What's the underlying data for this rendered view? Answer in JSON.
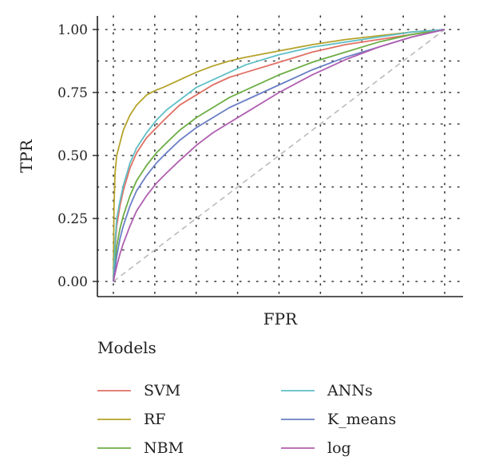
{
  "chart_data": {
    "type": "line",
    "title": "",
    "xlabel": "FPR",
    "ylabel": "TPR",
    "xlim": [
      0,
      1
    ],
    "ylim": [
      0,
      1
    ],
    "yticks": [
      "0.00",
      "0.25",
      "0.50",
      "0.75",
      "1.00"
    ],
    "grid": "dotted",
    "reference_line": {
      "x": [
        0,
        1
      ],
      "y": [
        0,
        1
      ],
      "color": "#bbbbbb",
      "style": "dashed"
    },
    "legend": {
      "title": "Models",
      "placement": "bottom",
      "columns": [
        [
          "SVM",
          "RF",
          "NBM"
        ],
        [
          "ANNs",
          "K_means",
          "log"
        ]
      ]
    },
    "series": [
      {
        "name": "SVM",
        "color": "#e07064",
        "x": [
          0,
          0.005,
          0.01,
          0.02,
          0.03,
          0.05,
          0.07,
          0.1,
          0.13,
          0.16,
          0.2,
          0.25,
          0.3,
          0.35,
          0.4,
          0.5,
          0.6,
          0.7,
          0.8,
          0.9,
          1.0
        ],
        "y": [
          0,
          0.13,
          0.22,
          0.3,
          0.36,
          0.45,
          0.51,
          0.57,
          0.61,
          0.65,
          0.7,
          0.74,
          0.78,
          0.81,
          0.83,
          0.87,
          0.91,
          0.94,
          0.96,
          0.98,
          1.0
        ]
      },
      {
        "name": "RF",
        "color": "#b5a329",
        "x": [
          0,
          0.002,
          0.005,
          0.01,
          0.02,
          0.03,
          0.05,
          0.07,
          0.1,
          0.13,
          0.15,
          0.2,
          0.25,
          0.3,
          0.35,
          0.4,
          0.5,
          0.6,
          0.7,
          0.8,
          0.9,
          1.0
        ],
        "y": [
          0,
          0.3,
          0.43,
          0.5,
          0.55,
          0.6,
          0.66,
          0.7,
          0.74,
          0.76,
          0.77,
          0.8,
          0.83,
          0.855,
          0.875,
          0.89,
          0.915,
          0.94,
          0.96,
          0.975,
          0.99,
          1.0
        ]
      },
      {
        "name": "NBM",
        "color": "#6dae44",
        "x": [
          0,
          0.005,
          0.01,
          0.02,
          0.03,
          0.05,
          0.07,
          0.1,
          0.13,
          0.16,
          0.2,
          0.25,
          0.3,
          0.35,
          0.4,
          0.5,
          0.6,
          0.7,
          0.8,
          0.9,
          1.0
        ],
        "y": [
          0,
          0.08,
          0.14,
          0.21,
          0.26,
          0.34,
          0.4,
          0.46,
          0.51,
          0.55,
          0.6,
          0.65,
          0.69,
          0.73,
          0.76,
          0.82,
          0.87,
          0.91,
          0.95,
          0.98,
          1.0
        ]
      },
      {
        "name": "ANNs",
        "color": "#5fbfc6",
        "x": [
          0,
          0.005,
          0.01,
          0.02,
          0.03,
          0.05,
          0.07,
          0.1,
          0.13,
          0.16,
          0.2,
          0.25,
          0.3,
          0.35,
          0.4,
          0.5,
          0.6,
          0.7,
          0.8,
          0.9,
          1.0
        ],
        "y": [
          0,
          0.15,
          0.25,
          0.32,
          0.38,
          0.47,
          0.53,
          0.59,
          0.64,
          0.68,
          0.72,
          0.77,
          0.8,
          0.83,
          0.86,
          0.9,
          0.93,
          0.95,
          0.97,
          0.99,
          1.0
        ]
      },
      {
        "name": "K_means",
        "color": "#6a7fc5",
        "x": [
          0,
          0.005,
          0.01,
          0.02,
          0.03,
          0.05,
          0.07,
          0.1,
          0.13,
          0.16,
          0.2,
          0.25,
          0.3,
          0.35,
          0.4,
          0.5,
          0.6,
          0.7,
          0.8,
          0.9,
          1.0
        ],
        "y": [
          0,
          0.05,
          0.1,
          0.17,
          0.22,
          0.3,
          0.36,
          0.42,
          0.47,
          0.51,
          0.56,
          0.61,
          0.65,
          0.69,
          0.72,
          0.78,
          0.84,
          0.89,
          0.93,
          0.97,
          1.0
        ]
      },
      {
        "name": "log",
        "color": "#b05fb0",
        "x": [
          0,
          0.005,
          0.01,
          0.02,
          0.03,
          0.05,
          0.07,
          0.1,
          0.13,
          0.16,
          0.2,
          0.25,
          0.3,
          0.35,
          0.4,
          0.5,
          0.6,
          0.7,
          0.8,
          0.9,
          1.0
        ],
        "y": [
          0,
          0.03,
          0.06,
          0.11,
          0.15,
          0.22,
          0.28,
          0.34,
          0.39,
          0.43,
          0.48,
          0.54,
          0.59,
          0.63,
          0.67,
          0.75,
          0.82,
          0.88,
          0.93,
          0.97,
          1.0
        ]
      }
    ]
  }
}
